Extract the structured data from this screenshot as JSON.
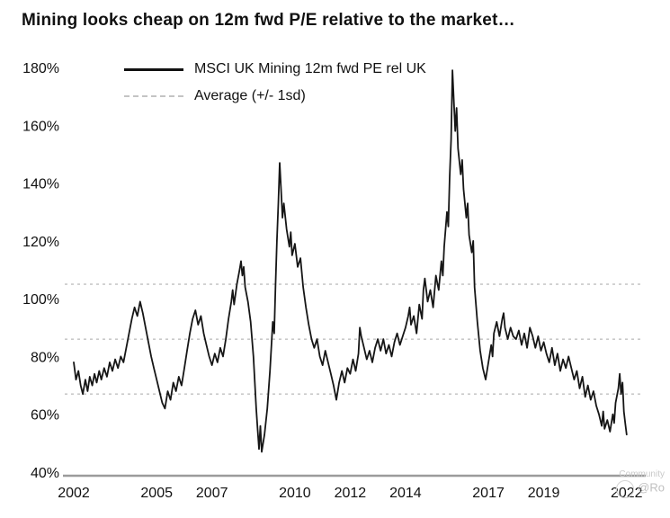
{
  "title": "Mining looks cheap on 12m fwd P/E relative to the market…",
  "legend": {
    "series_label": "MSCI UK Mining 12m fwd PE rel UK",
    "average_label": "Average (+/- 1sd)"
  },
  "colors": {
    "line": "#161616",
    "reference": "#c9c9c9",
    "axis": "#9b9b9b",
    "tick_text": "#111111"
  },
  "watermark": {
    "line1": "Community",
    "handle": "@Ro"
  },
  "chart_data": {
    "type": "line",
    "title": "Mining looks cheap on 12m fwd P/E relative to the market…",
    "xlabel": "",
    "ylabel": "",
    "xlim": [
      2002,
      2022.3
    ],
    "ylim": [
      40,
      180
    ],
    "x_ticks": [
      2002,
      2005,
      2007,
      2010,
      2012,
      2014,
      2017,
      2019,
      2022
    ],
    "y_ticks": [
      40,
      60,
      80,
      100,
      120,
      140,
      160,
      180
    ],
    "y_tick_suffix": "%",
    "grid": "dashed-reference-lines-only",
    "legend_position": "top-left",
    "reference_lines": {
      "plus_1sd": 105,
      "average": 86,
      "minus_1sd": 67
    },
    "series": [
      {
        "name": "MSCI UK Mining 12m fwd PE rel UK",
        "points": [
          [
            2002.0,
            78
          ],
          [
            2002.08,
            72
          ],
          [
            2002.17,
            75
          ],
          [
            2002.25,
            70
          ],
          [
            2002.33,
            67
          ],
          [
            2002.42,
            72
          ],
          [
            2002.5,
            68
          ],
          [
            2002.58,
            73
          ],
          [
            2002.67,
            70
          ],
          [
            2002.75,
            74
          ],
          [
            2002.83,
            71
          ],
          [
            2002.92,
            75
          ],
          [
            2003.0,
            72
          ],
          [
            2003.1,
            76
          ],
          [
            2003.2,
            73
          ],
          [
            2003.3,
            78
          ],
          [
            2003.4,
            75
          ],
          [
            2003.5,
            79
          ],
          [
            2003.6,
            76
          ],
          [
            2003.7,
            80
          ],
          [
            2003.8,
            78
          ],
          [
            2003.9,
            83
          ],
          [
            2004.0,
            88
          ],
          [
            2004.1,
            93
          ],
          [
            2004.2,
            97
          ],
          [
            2004.3,
            94
          ],
          [
            2004.4,
            99
          ],
          [
            2004.5,
            95
          ],
          [
            2004.6,
            90
          ],
          [
            2004.7,
            85
          ],
          [
            2004.8,
            80
          ],
          [
            2004.9,
            76
          ],
          [
            2005.0,
            72
          ],
          [
            2005.1,
            68
          ],
          [
            2005.2,
            64
          ],
          [
            2005.3,
            62
          ],
          [
            2005.4,
            68
          ],
          [
            2005.5,
            65
          ],
          [
            2005.6,
            71
          ],
          [
            2005.7,
            68
          ],
          [
            2005.8,
            73
          ],
          [
            2005.9,
            70
          ],
          [
            2006.0,
            76
          ],
          [
            2006.1,
            82
          ],
          [
            2006.2,
            88
          ],
          [
            2006.3,
            93
          ],
          [
            2006.4,
            96
          ],
          [
            2006.5,
            91
          ],
          [
            2006.6,
            94
          ],
          [
            2006.7,
            88
          ],
          [
            2006.8,
            84
          ],
          [
            2006.9,
            80
          ],
          [
            2007.0,
            77
          ],
          [
            2007.1,
            81
          ],
          [
            2007.2,
            78
          ],
          [
            2007.3,
            83
          ],
          [
            2007.4,
            80
          ],
          [
            2007.5,
            86
          ],
          [
            2007.6,
            93
          ],
          [
            2007.7,
            99
          ],
          [
            2007.75,
            103
          ],
          [
            2007.8,
            98
          ],
          [
            2007.9,
            105
          ],
          [
            2008.0,
            110
          ],
          [
            2008.05,
            113
          ],
          [
            2008.1,
            108
          ],
          [
            2008.15,
            111
          ],
          [
            2008.2,
            104
          ],
          [
            2008.3,
            99
          ],
          [
            2008.4,
            92
          ],
          [
            2008.5,
            80
          ],
          [
            2008.6,
            62
          ],
          [
            2008.65,
            55
          ],
          [
            2008.7,
            48
          ],
          [
            2008.75,
            56
          ],
          [
            2008.8,
            47
          ],
          [
            2008.9,
            53
          ],
          [
            2009.0,
            62
          ],
          [
            2009.1,
            75
          ],
          [
            2009.2,
            92
          ],
          [
            2009.25,
            88
          ],
          [
            2009.3,
            105
          ],
          [
            2009.35,
            120
          ],
          [
            2009.4,
            133
          ],
          [
            2009.45,
            147
          ],
          [
            2009.5,
            138
          ],
          [
            2009.55,
            128
          ],
          [
            2009.6,
            133
          ],
          [
            2009.7,
            124
          ],
          [
            2009.8,
            118
          ],
          [
            2009.85,
            123
          ],
          [
            2009.9,
            115
          ],
          [
            2010.0,
            119
          ],
          [
            2010.1,
            111
          ],
          [
            2010.2,
            114
          ],
          [
            2010.3,
            104
          ],
          [
            2010.4,
            97
          ],
          [
            2010.5,
            91
          ],
          [
            2010.6,
            86
          ],
          [
            2010.7,
            83
          ],
          [
            2010.8,
            86
          ],
          [
            2010.9,
            80
          ],
          [
            2011.0,
            77
          ],
          [
            2011.1,
            82
          ],
          [
            2011.2,
            78
          ],
          [
            2011.3,
            74
          ],
          [
            2011.4,
            70
          ],
          [
            2011.5,
            65
          ],
          [
            2011.6,
            71
          ],
          [
            2011.7,
            75
          ],
          [
            2011.8,
            71
          ],
          [
            2011.9,
            76
          ],
          [
            2012.0,
            74
          ],
          [
            2012.1,
            79
          ],
          [
            2012.2,
            75
          ],
          [
            2012.3,
            81
          ],
          [
            2012.35,
            90
          ],
          [
            2012.4,
            87
          ],
          [
            2012.5,
            83
          ],
          [
            2012.6,
            79
          ],
          [
            2012.7,
            82
          ],
          [
            2012.8,
            78
          ],
          [
            2012.9,
            83
          ],
          [
            2013.0,
            86
          ],
          [
            2013.1,
            82
          ],
          [
            2013.2,
            86
          ],
          [
            2013.3,
            81
          ],
          [
            2013.4,
            84
          ],
          [
            2013.5,
            80
          ],
          [
            2013.6,
            85
          ],
          [
            2013.7,
            88
          ],
          [
            2013.8,
            84
          ],
          [
            2013.9,
            87
          ],
          [
            2014.0,
            90
          ],
          [
            2014.1,
            94
          ],
          [
            2014.15,
            97
          ],
          [
            2014.2,
            91
          ],
          [
            2014.3,
            94
          ],
          [
            2014.4,
            88
          ],
          [
            2014.5,
            98
          ],
          [
            2014.6,
            93
          ],
          [
            2014.65,
            103
          ],
          [
            2014.7,
            107
          ],
          [
            2014.8,
            99
          ],
          [
            2014.9,
            103
          ],
          [
            2015.0,
            97
          ],
          [
            2015.1,
            108
          ],
          [
            2015.2,
            103
          ],
          [
            2015.3,
            113
          ],
          [
            2015.35,
            108
          ],
          [
            2015.4,
            118
          ],
          [
            2015.5,
            130
          ],
          [
            2015.55,
            125
          ],
          [
            2015.6,
            142
          ],
          [
            2015.65,
            155
          ],
          [
            2015.7,
            179
          ],
          [
            2015.75,
            168
          ],
          [
            2015.8,
            158
          ],
          [
            2015.85,
            166
          ],
          [
            2015.9,
            152
          ],
          [
            2016.0,
            143
          ],
          [
            2016.05,
            148
          ],
          [
            2016.1,
            138
          ],
          [
            2016.2,
            128
          ],
          [
            2016.25,
            133
          ],
          [
            2016.3,
            122
          ],
          [
            2016.4,
            116
          ],
          [
            2016.45,
            120
          ],
          [
            2016.5,
            104
          ],
          [
            2016.6,
            92
          ],
          [
            2016.7,
            82
          ],
          [
            2016.8,
            76
          ],
          [
            2016.9,
            72
          ],
          [
            2017.0,
            78
          ],
          [
            2017.1,
            84
          ],
          [
            2017.15,
            80
          ],
          [
            2017.2,
            88
          ],
          [
            2017.3,
            92
          ],
          [
            2017.4,
            87
          ],
          [
            2017.5,
            93
          ],
          [
            2017.55,
            95
          ],
          [
            2017.6,
            90
          ],
          [
            2017.7,
            86
          ],
          [
            2017.8,
            90
          ],
          [
            2017.9,
            87
          ],
          [
            2018.0,
            86
          ],
          [
            2018.1,
            89
          ],
          [
            2018.2,
            84
          ],
          [
            2018.3,
            88
          ],
          [
            2018.4,
            83
          ],
          [
            2018.5,
            90
          ],
          [
            2018.6,
            87
          ],
          [
            2018.7,
            83
          ],
          [
            2018.8,
            87
          ],
          [
            2018.9,
            82
          ],
          [
            2019.0,
            85
          ],
          [
            2019.1,
            81
          ],
          [
            2019.2,
            78
          ],
          [
            2019.3,
            83
          ],
          [
            2019.4,
            77
          ],
          [
            2019.5,
            81
          ],
          [
            2019.6,
            75
          ],
          [
            2019.7,
            79
          ],
          [
            2019.8,
            76
          ],
          [
            2019.9,
            80
          ],
          [
            2020.0,
            76
          ],
          [
            2020.1,
            72
          ],
          [
            2020.2,
            75
          ],
          [
            2020.3,
            69
          ],
          [
            2020.4,
            73
          ],
          [
            2020.5,
            66
          ],
          [
            2020.6,
            70
          ],
          [
            2020.7,
            65
          ],
          [
            2020.8,
            68
          ],
          [
            2020.9,
            63
          ],
          [
            2021.0,
            60
          ],
          [
            2021.1,
            56
          ],
          [
            2021.15,
            61
          ],
          [
            2021.2,
            55
          ],
          [
            2021.3,
            58
          ],
          [
            2021.4,
            54
          ],
          [
            2021.5,
            60
          ],
          [
            2021.55,
            57
          ],
          [
            2021.6,
            64
          ],
          [
            2021.7,
            69
          ],
          [
            2021.75,
            74
          ],
          [
            2021.8,
            67
          ],
          [
            2021.85,
            71
          ],
          [
            2021.9,
            61
          ],
          [
            2021.95,
            57
          ],
          [
            2022.0,
            53
          ]
        ]
      }
    ]
  }
}
